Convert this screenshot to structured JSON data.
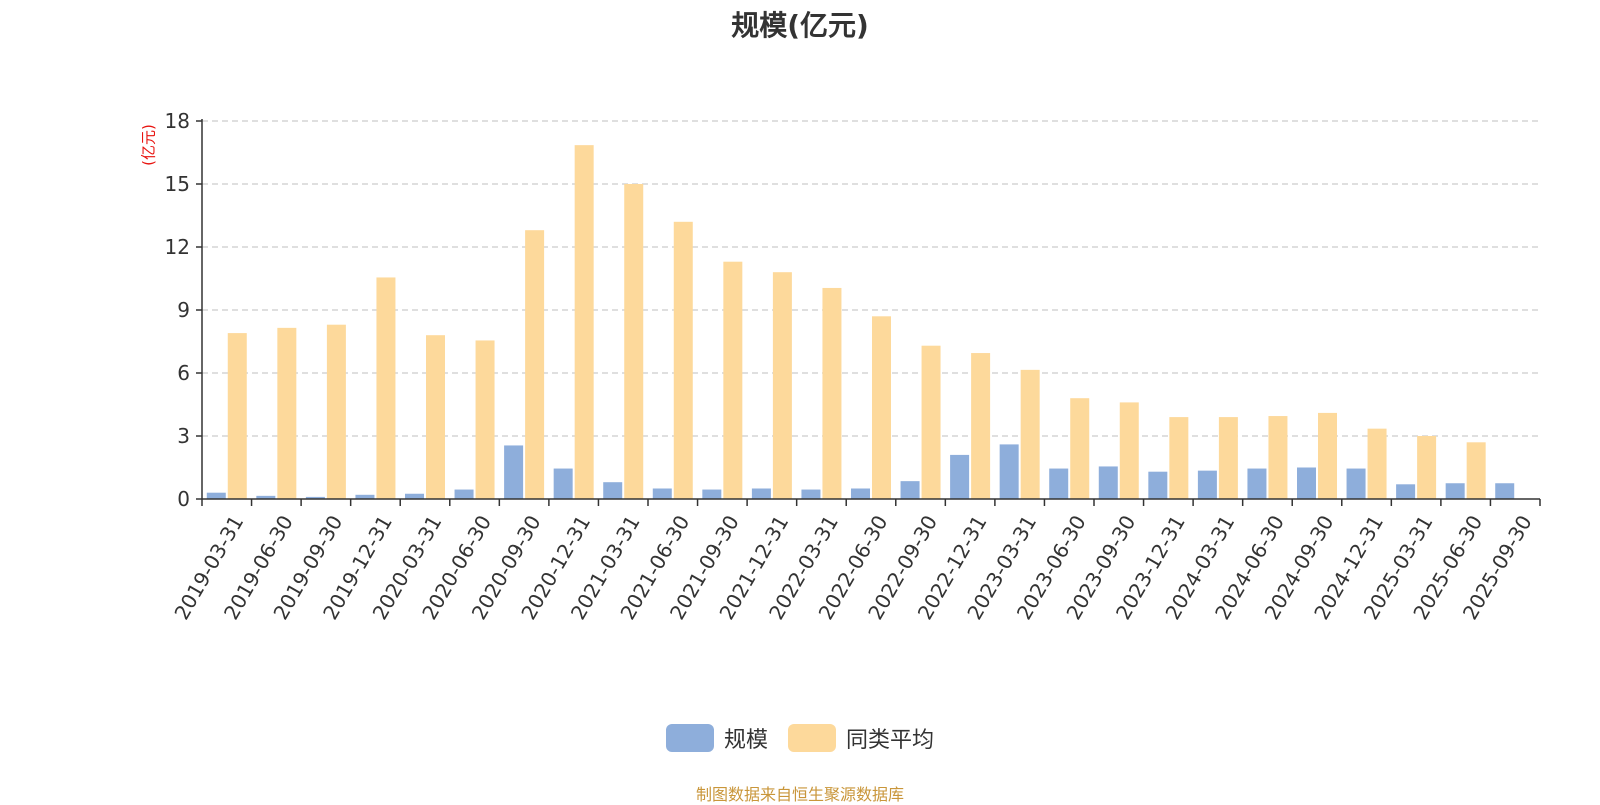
{
  "chart_data": {
    "type": "bar",
    "title": "规模(亿元)",
    "ylabel": "(亿元)",
    "ylim": [
      0,
      18
    ],
    "yticks": [
      0,
      3,
      6,
      9,
      12,
      15,
      18
    ],
    "grid": true,
    "legend_position": "bottom",
    "categories": [
      "2019-03-31",
      "2019-06-30",
      "2019-09-30",
      "2019-12-31",
      "2020-03-31",
      "2020-06-30",
      "2020-09-30",
      "2020-12-31",
      "2021-03-31",
      "2021-06-30",
      "2021-09-30",
      "2021-12-31",
      "2022-03-31",
      "2022-06-30",
      "2022-09-30",
      "2022-12-31",
      "2023-03-31",
      "2023-06-30",
      "2023-09-30",
      "2023-12-31",
      "2024-03-31",
      "2024-06-30",
      "2024-09-30",
      "2024-12-31",
      "2025-03-31",
      "2025-06-30",
      "2025-09-30"
    ],
    "series": [
      {
        "name": "规模",
        "color": "#8eaedb",
        "values": [
          0.3,
          0.15,
          0.1,
          0.2,
          0.25,
          0.45,
          2.55,
          1.45,
          0.8,
          0.5,
          0.45,
          0.5,
          0.45,
          0.5,
          0.85,
          2.1,
          2.6,
          1.45,
          1.55,
          1.3,
          1.35,
          1.45,
          1.5,
          1.45,
          0.7,
          0.75,
          0.75
        ]
      },
      {
        "name": "同类平均",
        "color": "#fdd99b",
        "values": [
          7.9,
          8.15,
          8.3,
          10.55,
          7.8,
          7.55,
          12.8,
          16.85,
          15.0,
          13.2,
          11.3,
          10.8,
          10.05,
          8.7,
          7.3,
          6.95,
          6.15,
          4.8,
          4.6,
          3.9,
          3.9,
          3.95,
          4.1,
          3.35,
          3.0,
          2.7,
          null
        ]
      }
    ]
  },
  "source": "制图数据来自恒生聚源数据库"
}
